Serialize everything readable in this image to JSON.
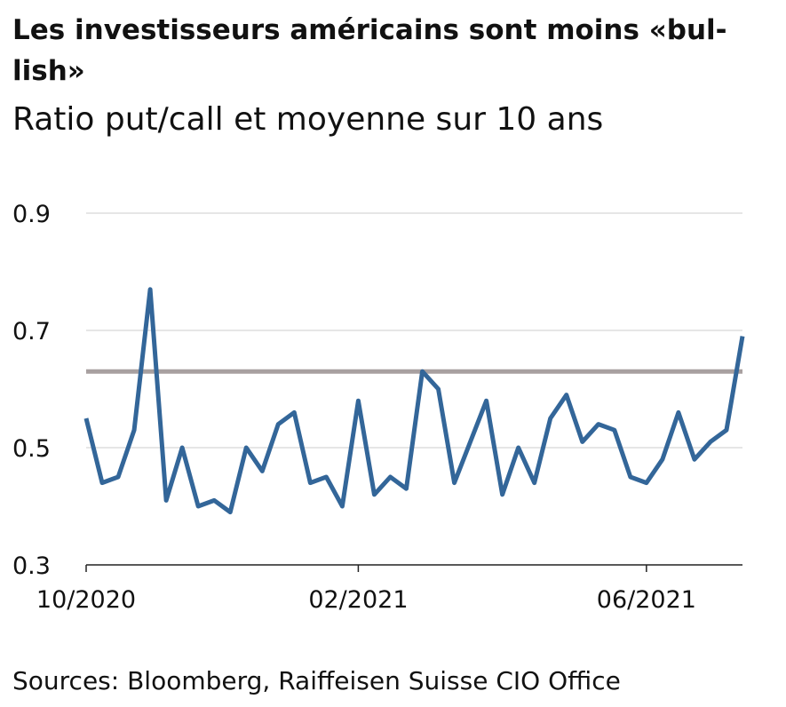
{
  "chart_data": {
    "type": "line",
    "title": [
      "Les investisseurs américains sont moins «bul-",
      "lish»"
    ],
    "subtitle": "Ratio put/call et moyenne sur 10 ans",
    "source": "Sources: Bloomberg, Raiffeisen Suisse CIO Office",
    "categories": [
      "10/2020",
      null,
      null,
      null,
      null,
      null,
      null,
      null,
      null,
      null,
      null,
      null,
      null,
      null,
      null,
      null,
      null,
      "02/2021",
      null,
      null,
      null,
      null,
      null,
      null,
      null,
      null,
      null,
      null,
      null,
      null,
      null,
      null,
      null,
      null,
      null,
      "06/2021",
      null,
      null,
      null,
      null,
      null,
      null
    ],
    "series": [
      {
        "color": "#336699",
        "values": [
          0.55,
          0.44,
          0.45,
          0.53,
          0.77,
          0.41,
          0.5,
          0.4,
          0.41,
          0.39,
          0.5,
          0.46,
          0.54,
          0.56,
          0.44,
          0.45,
          0.4,
          0.58,
          0.42,
          0.45,
          0.43,
          0.63,
          0.6,
          0.44,
          0.51,
          0.58,
          0.42,
          0.5,
          0.44,
          0.55,
          0.59,
          0.51,
          0.54,
          0.53,
          0.45,
          0.44,
          0.48,
          0.56,
          0.48,
          0.51,
          0.53,
          0.69
        ]
      }
    ],
    "reference_line": {
      "value": 0.63,
      "color": "#a8a0a0"
    },
    "ylim": [
      0.3,
      0.9
    ],
    "yticks": [
      0.3,
      0.5,
      0.7,
      0.9
    ],
    "grid": true
  }
}
